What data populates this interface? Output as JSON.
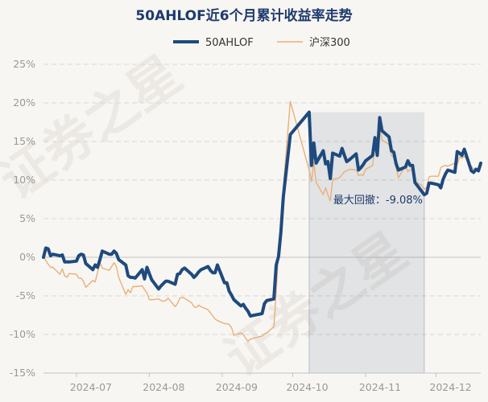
{
  "chart_data": {
    "type": "line",
    "title": "50AHLOF近6个月累计收益率走势",
    "watermark": "证券之星",
    "y_unit": "%",
    "ylim": [
      -15,
      25
    ],
    "y_ticks": [
      25,
      20,
      15,
      10,
      5,
      0,
      -5,
      -10,
      -15
    ],
    "y_tick_labels": [
      "25%",
      "20%",
      "15%",
      "10%",
      "5%",
      "0%",
      "-5%",
      "-10%",
      "-15%"
    ],
    "x_tick_labels": [
      "2024-07",
      "2024-08",
      "2024-09",
      "2024-10",
      "2024-11",
      "2024-12"
    ],
    "x_tick_dates": [
      "2024-07-01",
      "2024-08-01",
      "2024-09-01",
      "2024-10-01",
      "2024-11-01",
      "2024-12-01"
    ],
    "xlim": [
      "2024-06-17",
      "2024-12-20"
    ],
    "legend_position": "top-center",
    "grid": true,
    "series": [
      {
        "name": "50AHLOF",
        "color": "#1e4a7e",
        "points": [
          [
            "2024-06-17",
            0.0
          ],
          [
            "2024-06-18",
            1.2
          ],
          [
            "2024-06-19",
            1.1
          ],
          [
            "2024-06-20",
            0.2
          ],
          [
            "2024-06-21",
            0.4
          ],
          [
            "2024-06-24",
            0.2
          ],
          [
            "2024-06-25",
            0.3
          ],
          [
            "2024-06-26",
            -0.6
          ],
          [
            "2024-06-27",
            -0.6
          ],
          [
            "2024-06-28",
            -0.6
          ],
          [
            "2024-07-01",
            -0.5
          ],
          [
            "2024-07-02",
            0.2
          ],
          [
            "2024-07-03",
            0.4
          ],
          [
            "2024-07-04",
            0.3
          ],
          [
            "2024-07-05",
            -0.8
          ],
          [
            "2024-07-08",
            -1.6
          ],
          [
            "2024-07-09",
            -1.0
          ],
          [
            "2024-07-10",
            -1.3
          ],
          [
            "2024-07-11",
            -0.3
          ],
          [
            "2024-07-12",
            0.8
          ],
          [
            "2024-07-15",
            0.4
          ],
          [
            "2024-07-16",
            0.4
          ],
          [
            "2024-07-17",
            0.8
          ],
          [
            "2024-07-18",
            0.5
          ],
          [
            "2024-07-19",
            -0.3
          ],
          [
            "2024-07-22",
            -1.0
          ],
          [
            "2024-07-23",
            -2.4
          ],
          [
            "2024-07-24",
            -2.6
          ],
          [
            "2024-07-25",
            -2.6
          ],
          [
            "2024-07-26",
            -2.7
          ],
          [
            "2024-07-29",
            -1.6
          ],
          [
            "2024-07-30",
            -2.8
          ],
          [
            "2024-07-31",
            -1.3
          ],
          [
            "2024-08-01",
            -2.1
          ],
          [
            "2024-08-02",
            -2.9
          ],
          [
            "2024-08-05",
            -4.1
          ],
          [
            "2024-08-06",
            -3.7
          ],
          [
            "2024-08-07",
            -3.4
          ],
          [
            "2024-08-08",
            -3.1
          ],
          [
            "2024-08-09",
            -3.1
          ],
          [
            "2024-08-12",
            -3.5
          ],
          [
            "2024-08-13",
            -2.2
          ],
          [
            "2024-08-14",
            -2.1
          ],
          [
            "2024-08-15",
            -1.6
          ],
          [
            "2024-08-16",
            -1.4
          ],
          [
            "2024-08-19",
            -2.2
          ],
          [
            "2024-08-20",
            -2.6
          ],
          [
            "2024-08-21",
            -2.3
          ],
          [
            "2024-08-22",
            -1.9
          ],
          [
            "2024-08-23",
            -1.6
          ],
          [
            "2024-08-26",
            -1.2
          ],
          [
            "2024-08-27",
            -1.7
          ],
          [
            "2024-08-28",
            -2.0
          ],
          [
            "2024-08-29",
            -2.0
          ],
          [
            "2024-08-30",
            -1.0
          ],
          [
            "2024-09-02",
            -3.3
          ],
          [
            "2024-09-03",
            -3.3
          ],
          [
            "2024-09-04",
            -4.4
          ],
          [
            "2024-09-05",
            -4.9
          ],
          [
            "2024-09-06",
            -5.5
          ],
          [
            "2024-09-09",
            -6.3
          ],
          [
            "2024-09-10",
            -6.1
          ],
          [
            "2024-09-11",
            -6.6
          ],
          [
            "2024-09-12",
            -7.0
          ],
          [
            "2024-09-13",
            -7.6
          ],
          [
            "2024-09-18",
            -7.3
          ],
          [
            "2024-09-19",
            -6.0
          ],
          [
            "2024-09-20",
            -5.6
          ],
          [
            "2024-09-23",
            -5.4
          ],
          [
            "2024-09-24",
            -1.0
          ],
          [
            "2024-09-25",
            0.1
          ],
          [
            "2024-09-26",
            3.4
          ],
          [
            "2024-09-27",
            7.8
          ],
          [
            "2024-09-30",
            15.9
          ],
          [
            "2024-10-08",
            18.8
          ],
          [
            "2024-10-09",
            11.9
          ],
          [
            "2024-10-10",
            14.8
          ],
          [
            "2024-10-11",
            12.2
          ],
          [
            "2024-10-14",
            13.8
          ],
          [
            "2024-10-15",
            12.1
          ],
          [
            "2024-10-16",
            12.4
          ],
          [
            "2024-10-17",
            10.2
          ],
          [
            "2024-10-18",
            13.5
          ],
          [
            "2024-10-21",
            13.1
          ],
          [
            "2024-10-22",
            14.1
          ],
          [
            "2024-10-23",
            13.2
          ],
          [
            "2024-10-24",
            12.4
          ],
          [
            "2024-10-25",
            12.6
          ],
          [
            "2024-10-28",
            13.4
          ],
          [
            "2024-10-29",
            11.3
          ],
          [
            "2024-10-30",
            11.6
          ],
          [
            "2024-10-31",
            12.0
          ],
          [
            "2024-11-01",
            12.5
          ],
          [
            "2024-11-04",
            13.2
          ],
          [
            "2024-11-05",
            15.5
          ],
          [
            "2024-11-06",
            13.2
          ],
          [
            "2024-11-07",
            18.1
          ],
          [
            "2024-11-08",
            16.4
          ],
          [
            "2024-11-11",
            15.6
          ],
          [
            "2024-11-12",
            13.8
          ],
          [
            "2024-11-13",
            13.6
          ],
          [
            "2024-11-14",
            12.1
          ],
          [
            "2024-11-15",
            11.3
          ],
          [
            "2024-11-18",
            11.7
          ],
          [
            "2024-11-19",
            12.5
          ],
          [
            "2024-11-20",
            11.9
          ],
          [
            "2024-11-21",
            11.9
          ],
          [
            "2024-11-22",
            9.7
          ],
          [
            "2024-11-25",
            8.5
          ],
          [
            "2024-11-26",
            8.1
          ],
          [
            "2024-11-27",
            8.3
          ],
          [
            "2024-11-28",
            9.6
          ],
          [
            "2024-11-29",
            9.6
          ],
          [
            "2024-12-02",
            9.4
          ],
          [
            "2024-12-03",
            9.0
          ],
          [
            "2024-12-04",
            10.1
          ],
          [
            "2024-12-05",
            10.8
          ],
          [
            "2024-12-06",
            11.3
          ],
          [
            "2024-12-09",
            11.0
          ],
          [
            "2024-12-10",
            13.7
          ],
          [
            "2024-12-11",
            13.5
          ],
          [
            "2024-12-12",
            13.2
          ],
          [
            "2024-12-13",
            14.0
          ],
          [
            "2024-12-16",
            11.2
          ],
          [
            "2024-12-17",
            11.0
          ],
          [
            "2024-12-18",
            11.4
          ],
          [
            "2024-12-19",
            11.2
          ],
          [
            "2024-12-20",
            12.2
          ]
        ]
      },
      {
        "name": "沪深300",
        "color": "#e8b079",
        "points": [
          [
            "2024-06-17",
            0.0
          ],
          [
            "2024-06-18",
            -0.4
          ],
          [
            "2024-06-19",
            -0.9
          ],
          [
            "2024-06-20",
            -1.3
          ],
          [
            "2024-06-21",
            -1.3
          ],
          [
            "2024-06-24",
            -2.2
          ],
          [
            "2024-06-25",
            -1.5
          ],
          [
            "2024-06-26",
            -2.4
          ],
          [
            "2024-06-27",
            -2.6
          ],
          [
            "2024-06-28",
            -2.1
          ],
          [
            "2024-07-01",
            -2.2
          ],
          [
            "2024-07-02",
            -2.7
          ],
          [
            "2024-07-03",
            -2.7
          ],
          [
            "2024-07-04",
            -3.1
          ],
          [
            "2024-07-05",
            -3.9
          ],
          [
            "2024-07-08",
            -3.0
          ],
          [
            "2024-07-09",
            -3.2
          ],
          [
            "2024-07-10",
            -2.0
          ],
          [
            "2024-07-11",
            -0.7
          ],
          [
            "2024-07-12",
            -1.4
          ],
          [
            "2024-07-15",
            -1.7
          ],
          [
            "2024-07-16",
            -1.2
          ],
          [
            "2024-07-17",
            -0.7
          ],
          [
            "2024-07-18",
            -1.2
          ],
          [
            "2024-07-19",
            -2.6
          ],
          [
            "2024-07-22",
            -4.8
          ],
          [
            "2024-07-23",
            -4.2
          ],
          [
            "2024-07-24",
            -4.6
          ],
          [
            "2024-07-25",
            -3.8
          ],
          [
            "2024-07-26",
            -3.8
          ],
          [
            "2024-07-29",
            -3.7
          ],
          [
            "2024-07-30",
            -4.2
          ],
          [
            "2024-07-31",
            -4.6
          ],
          [
            "2024-08-01",
            -5.5
          ],
          [
            "2024-08-02",
            -5.5
          ],
          [
            "2024-08-05",
            -5.4
          ],
          [
            "2024-08-06",
            -5.6
          ],
          [
            "2024-08-07",
            -5.7
          ],
          [
            "2024-08-08",
            -5.6
          ],
          [
            "2024-08-09",
            -5.3
          ],
          [
            "2024-08-12",
            -6.4
          ],
          [
            "2024-08-13",
            -6.0
          ],
          [
            "2024-08-14",
            -5.3
          ],
          [
            "2024-08-15",
            -5.2
          ],
          [
            "2024-08-16",
            -5.3
          ],
          [
            "2024-08-19",
            -5.9
          ],
          [
            "2024-08-20",
            -6.4
          ],
          [
            "2024-08-21",
            -6.5
          ],
          [
            "2024-08-22",
            -6.2
          ],
          [
            "2024-08-23",
            -6.4
          ],
          [
            "2024-08-26",
            -6.8
          ],
          [
            "2024-08-27",
            -7.2
          ],
          [
            "2024-08-28",
            -7.6
          ],
          [
            "2024-08-29",
            -8.0
          ],
          [
            "2024-08-30",
            -8.2
          ],
          [
            "2024-09-02",
            -8.6
          ],
          [
            "2024-09-03",
            -8.6
          ],
          [
            "2024-09-04",
            -8.7
          ],
          [
            "2024-09-05",
            -9.1
          ],
          [
            "2024-09-06",
            -10.1
          ],
          [
            "2024-09-09",
            -9.8
          ],
          [
            "2024-09-10",
            -10.0
          ],
          [
            "2024-09-11",
            -10.5
          ],
          [
            "2024-09-12",
            -10.9
          ],
          [
            "2024-09-13",
            -10.6
          ],
          [
            "2024-09-18",
            -10.2
          ],
          [
            "2024-09-19",
            -9.9
          ],
          [
            "2024-09-20",
            -9.8
          ],
          [
            "2024-09-23",
            -9.0
          ],
          [
            "2024-09-24",
            -4.5
          ],
          [
            "2024-09-25",
            1.0
          ],
          [
            "2024-09-26",
            4.0
          ],
          [
            "2024-09-27",
            9.1
          ],
          [
            "2024-09-30",
            20.2
          ],
          [
            "2024-10-08",
            11.3
          ],
          [
            "2024-10-09",
            9.8
          ],
          [
            "2024-10-10",
            12.3
          ],
          [
            "2024-10-11",
            9.7
          ],
          [
            "2024-10-14",
            8.1
          ],
          [
            "2024-10-15",
            9.0
          ],
          [
            "2024-10-16",
            8.1
          ],
          [
            "2024-10-17",
            7.3
          ],
          [
            "2024-10-18",
            10.1
          ],
          [
            "2024-10-21",
            10.3
          ],
          [
            "2024-10-22",
            10.7
          ],
          [
            "2024-10-23",
            11.1
          ],
          [
            "2024-10-24",
            11.2
          ],
          [
            "2024-10-25",
            11.4
          ],
          [
            "2024-10-28",
            11.3
          ],
          [
            "2024-10-29",
            10.6
          ],
          [
            "2024-10-30",
            10.7
          ],
          [
            "2024-10-31",
            10.6
          ],
          [
            "2024-11-01",
            11.4
          ],
          [
            "2024-11-04",
            11.9
          ],
          [
            "2024-11-05",
            14.8
          ],
          [
            "2024-11-06",
            14.7
          ],
          [
            "2024-11-07",
            16.8
          ],
          [
            "2024-11-08",
            15.2
          ],
          [
            "2024-11-11",
            14.6
          ],
          [
            "2024-11-12",
            13.2
          ],
          [
            "2024-11-13",
            12.9
          ],
          [
            "2024-11-14",
            11.6
          ],
          [
            "2024-11-15",
            10.3
          ],
          [
            "2024-11-18",
            11.9
          ],
          [
            "2024-11-19",
            11.1
          ],
          [
            "2024-11-20",
            11.3
          ],
          [
            "2024-11-21",
            11.5
          ],
          [
            "2024-11-22",
            9.8
          ],
          [
            "2024-11-25",
            9.3
          ],
          [
            "2024-11-26",
            8.8
          ],
          [
            "2024-11-27",
            9.1
          ],
          [
            "2024-11-28",
            10.4
          ],
          [
            "2024-11-29",
            10.5
          ],
          [
            "2024-12-02",
            10.5
          ],
          [
            "2024-12-03",
            11.6
          ],
          [
            "2024-12-04",
            11.8
          ],
          [
            "2024-12-05",
            11.9
          ],
          [
            "2024-12-06",
            11.8
          ],
          [
            "2024-12-09",
            12.2
          ],
          [
            "2024-12-10",
            12.0
          ],
          [
            "2024-12-11",
            13.0
          ],
          [
            "2024-12-12",
            12.8
          ],
          [
            "2024-12-13",
            13.1
          ],
          [
            "2024-12-16",
            11.8
          ],
          [
            "2024-12-17",
            11.4
          ],
          [
            "2024-12-18",
            11.6
          ],
          [
            "2024-12-19",
            11.3
          ],
          [
            "2024-12-20",
            11.7
          ]
        ]
      }
    ],
    "max_drawdown": {
      "label": "最大回撤：-9.08%",
      "start": "2024-10-08",
      "end": "2024-11-26",
      "top_value": 18.8,
      "bottom_value": 8.1,
      "color": "#1e3a6e"
    }
  }
}
